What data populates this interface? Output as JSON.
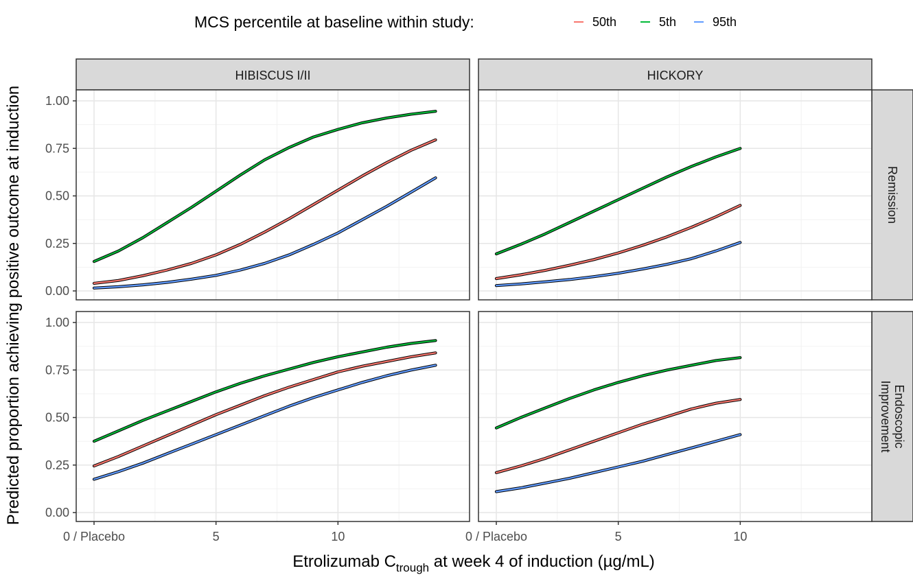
{
  "chart_data": {
    "type": "line",
    "title": "",
    "xlabel": {
      "prefix": "Etrolizumab C",
      "subscript": "trough",
      "suffix": " at week 4  of induction (µg/mL)"
    },
    "ylabel": "Predicted proportion achieving positive outcome at induction",
    "xlim": [
      0,
      15
    ],
    "ylim": [
      0,
      1
    ],
    "x_ticks": [
      {
        "value": 0,
        "label": "0 / Placebo"
      },
      {
        "value": 5,
        "label": "5"
      },
      {
        "value": 10,
        "label": "10"
      }
    ],
    "y_ticks": [
      {
        "value": 0,
        "label": "0.00"
      },
      {
        "value": 0.25,
        "label": "0.25"
      },
      {
        "value": 0.5,
        "label": "0.50"
      },
      {
        "value": 0.75,
        "label": "0.75"
      },
      {
        "value": 1,
        "label": "1.00"
      }
    ],
    "grid": true,
    "legend": {
      "title": "MCS percentile at baseline within study:",
      "position": "top",
      "entries": [
        {
          "name": "50th",
          "color": "#F8766D"
        },
        {
          "name": "5th",
          "color": "#00BA38"
        },
        {
          "name": "95th",
          "color": "#619CFF"
        }
      ]
    },
    "facet_columns": [
      "HIBISCUS I/II",
      "HICKORY"
    ],
    "facet_rows": [
      {
        "label": "Remission",
        "lines": [
          "Remission"
        ]
      },
      {
        "label": "Endoscopic Improvement",
        "lines": [
          "Endoscopic",
          "Improvement"
        ]
      }
    ],
    "panels": [
      {
        "column": "HIBISCUS I/II",
        "row": "Remission",
        "series": [
          {
            "name": "5th",
            "x": [
              0,
              1,
              2,
              3,
              4,
              5,
              6,
              7,
              8,
              9,
              10,
              11,
              12,
              13,
              14
            ],
            "y": [
              0.155,
              0.21,
              0.28,
              0.36,
              0.44,
              0.525,
              0.61,
              0.69,
              0.755,
              0.81,
              0.85,
              0.885,
              0.91,
              0.93,
              0.945
            ]
          },
          {
            "name": "50th",
            "x": [
              0,
              1,
              2,
              3,
              4,
              5,
              6,
              7,
              8,
              9,
              10,
              11,
              12,
              13,
              14
            ],
            "y": [
              0.04,
              0.055,
              0.08,
              0.11,
              0.145,
              0.19,
              0.245,
              0.31,
              0.38,
              0.455,
              0.53,
              0.605,
              0.675,
              0.74,
              0.795
            ]
          },
          {
            "name": "95th",
            "x": [
              0,
              1,
              2,
              3,
              4,
              5,
              6,
              7,
              8,
              9,
              10,
              11,
              12,
              13,
              14
            ],
            "y": [
              0.015,
              0.022,
              0.032,
              0.045,
              0.062,
              0.082,
              0.11,
              0.145,
              0.19,
              0.245,
              0.305,
              0.375,
              0.445,
              0.52,
              0.595
            ]
          }
        ]
      },
      {
        "column": "HICKORY",
        "row": "Remission",
        "series": [
          {
            "name": "5th",
            "x": [
              0,
              1,
              2,
              3,
              4,
              5,
              6,
              7,
              8,
              9,
              10
            ],
            "y": [
              0.195,
              0.245,
              0.3,
              0.36,
              0.42,
              0.48,
              0.54,
              0.6,
              0.655,
              0.705,
              0.75
            ]
          },
          {
            "name": "50th",
            "x": [
              0,
              1,
              2,
              3,
              4,
              5,
              6,
              7,
              8,
              9,
              10
            ],
            "y": [
              0.065,
              0.085,
              0.108,
              0.135,
              0.165,
              0.2,
              0.24,
              0.285,
              0.335,
              0.39,
              0.45
            ]
          },
          {
            "name": "95th",
            "x": [
              0,
              1,
              2,
              3,
              4,
              5,
              6,
              7,
              8,
              9,
              10
            ],
            "y": [
              0.028,
              0.037,
              0.048,
              0.06,
              0.075,
              0.093,
              0.115,
              0.14,
              0.17,
              0.21,
              0.255
            ]
          }
        ]
      },
      {
        "column": "HIBISCUS I/II",
        "row": "Endoscopic Improvement",
        "series": [
          {
            "name": "5th",
            "x": [
              0,
              1,
              2,
              3,
              4,
              5,
              6,
              7,
              8,
              9,
              10,
              11,
              12,
              13,
              14
            ],
            "y": [
              0.375,
              0.43,
              0.485,
              0.535,
              0.585,
              0.635,
              0.68,
              0.72,
              0.755,
              0.79,
              0.82,
              0.845,
              0.87,
              0.89,
              0.905
            ]
          },
          {
            "name": "50th",
            "x": [
              0,
              1,
              2,
              3,
              4,
              5,
              6,
              7,
              8,
              9,
              10,
              11,
              12,
              13,
              14
            ],
            "y": [
              0.245,
              0.295,
              0.35,
              0.405,
              0.46,
              0.515,
              0.565,
              0.615,
              0.66,
              0.7,
              0.74,
              0.77,
              0.795,
              0.82,
              0.84
            ]
          },
          {
            "name": "95th",
            "x": [
              0,
              1,
              2,
              3,
              4,
              5,
              6,
              7,
              8,
              9,
              10,
              11,
              12,
              13,
              14
            ],
            "y": [
              0.175,
              0.215,
              0.26,
              0.31,
              0.36,
              0.41,
              0.46,
              0.51,
              0.56,
              0.605,
              0.645,
              0.685,
              0.72,
              0.75,
              0.775
            ]
          }
        ]
      },
      {
        "column": "HICKORY",
        "row": "Endoscopic Improvement",
        "series": [
          {
            "name": "5th",
            "x": [
              0,
              1,
              2,
              3,
              4,
              5,
              6,
              7,
              8,
              9,
              10
            ],
            "y": [
              0.445,
              0.5,
              0.55,
              0.6,
              0.645,
              0.685,
              0.72,
              0.75,
              0.775,
              0.8,
              0.815
            ]
          },
          {
            "name": "50th",
            "x": [
              0,
              1,
              2,
              3,
              4,
              5,
              6,
              7,
              8,
              9,
              10
            ],
            "y": [
              0.21,
              0.245,
              0.285,
              0.33,
              0.375,
              0.42,
              0.465,
              0.505,
              0.545,
              0.575,
              0.595
            ]
          },
          {
            "name": "95th",
            "x": [
              0,
              1,
              2,
              3,
              4,
              5,
              6,
              7,
              8,
              9,
              10
            ],
            "y": [
              0.11,
              0.13,
              0.155,
              0.18,
              0.21,
              0.24,
              0.27,
              0.305,
              0.34,
              0.375,
              0.41
            ]
          }
        ]
      }
    ]
  }
}
